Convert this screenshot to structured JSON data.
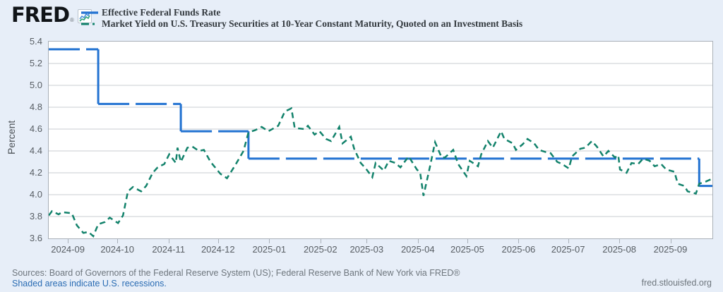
{
  "header": {
    "logo_text": "FRED",
    "registered_mark": "®"
  },
  "legend": [
    {
      "label": "Effective Federal Funds Rate",
      "color": "#2272d1",
      "style": "solid"
    },
    {
      "label": "Market Yield on U.S. Treasury Securities at 10-Year Constant Maturity, Quoted on an Investment Basis",
      "color": "#12826b",
      "style": "dash-dot"
    }
  ],
  "footer": {
    "sources": "Sources: Board of Governors of the Federal Reserve System (US); Federal Reserve Bank of New York via FRED®",
    "recession_note": "Shaded areas indicate U.S. recessions.",
    "site": "fred.stlouisfed.org"
  },
  "chart_data": {
    "type": "line",
    "title": "",
    "xlabel": "",
    "ylabel": "Percent",
    "ylim": [
      3.6,
      5.4
    ],
    "yticks": [
      5.4,
      5.2,
      5.0,
      4.8,
      4.6,
      4.4,
      4.2,
      4.0,
      3.8,
      3.6
    ],
    "grid": "horizontal",
    "legend_position": "top-left",
    "x_range": [
      "2024-08-20",
      "2025-09-26"
    ],
    "xticks": [
      {
        "date": "2024-09-01",
        "label": "2024-09"
      },
      {
        "date": "2024-10-01",
        "label": "2024-10"
      },
      {
        "date": "2024-11-01",
        "label": "2024-11"
      },
      {
        "date": "2024-12-01",
        "label": "2024-12"
      },
      {
        "date": "2025-01-01",
        "label": "2025-01"
      },
      {
        "date": "2025-02-01",
        "label": "2025-02"
      },
      {
        "date": "2025-03-01",
        "label": "2025-03"
      },
      {
        "date": "2025-04-01",
        "label": "2025-04"
      },
      {
        "date": "2025-05-01",
        "label": "2025-05"
      },
      {
        "date": "2025-06-01",
        "label": "2025-06"
      },
      {
        "date": "2025-07-01",
        "label": "2025-07"
      },
      {
        "date": "2025-08-01",
        "label": "2025-08"
      },
      {
        "date": "2025-09-01",
        "label": "2025-09"
      }
    ],
    "series": [
      {
        "name": "Effective Federal Funds Rate",
        "color": "#2272d1",
        "line": "step",
        "width": 3,
        "points": [
          [
            "2024-08-20",
            5.33
          ],
          [
            "2024-09-19",
            4.83
          ],
          [
            "2024-11-08",
            4.58
          ],
          [
            "2024-12-19",
            4.33
          ],
          [
            "2025-09-18",
            4.08
          ],
          [
            "2025-09-26",
            4.08
          ]
        ]
      },
      {
        "name": "Market Yield on U.S. Treasury Securities at 10-Year Constant Maturity, Quoted on an Investment Basis",
        "color": "#12826b",
        "line": "dashed",
        "width": 2.5,
        "points": [
          [
            "2024-08-20",
            3.81
          ],
          [
            "2024-08-22",
            3.85
          ],
          [
            "2024-08-26",
            3.82
          ],
          [
            "2024-08-28",
            3.84
          ],
          [
            "2024-09-03",
            3.83
          ],
          [
            "2024-09-06",
            3.72
          ],
          [
            "2024-09-10",
            3.65
          ],
          [
            "2024-09-13",
            3.66
          ],
          [
            "2024-09-16",
            3.62
          ],
          [
            "2024-09-19",
            3.73
          ],
          [
            "2024-09-23",
            3.75
          ],
          [
            "2024-09-26",
            3.79
          ],
          [
            "2024-10-01",
            3.74
          ],
          [
            "2024-10-04",
            3.81
          ],
          [
            "2024-10-07",
            4.03
          ],
          [
            "2024-10-10",
            4.07
          ],
          [
            "2024-10-15",
            4.03
          ],
          [
            "2024-10-18",
            4.08
          ],
          [
            "2024-10-22",
            4.2
          ],
          [
            "2024-10-25",
            4.25
          ],
          [
            "2024-10-29",
            4.28
          ],
          [
            "2024-11-01",
            4.37
          ],
          [
            "2024-11-05",
            4.29
          ],
          [
            "2024-11-06",
            4.43
          ],
          [
            "2024-11-08",
            4.3
          ],
          [
            "2024-11-12",
            4.43
          ],
          [
            "2024-11-15",
            4.44
          ],
          [
            "2024-11-19",
            4.4
          ],
          [
            "2024-11-22",
            4.41
          ],
          [
            "2024-11-26",
            4.3
          ],
          [
            "2024-12-02",
            4.19
          ],
          [
            "2024-12-06",
            4.15
          ],
          [
            "2024-12-11",
            4.27
          ],
          [
            "2024-12-16",
            4.4
          ],
          [
            "2024-12-19",
            4.57
          ],
          [
            "2024-12-23",
            4.59
          ],
          [
            "2024-12-27",
            4.62
          ],
          [
            "2024-12-31",
            4.58
          ],
          [
            "2025-01-06",
            4.63
          ],
          [
            "2025-01-10",
            4.76
          ],
          [
            "2025-01-14",
            4.79
          ],
          [
            "2025-01-16",
            4.61
          ],
          [
            "2025-01-22",
            4.6
          ],
          [
            "2025-01-24",
            4.63
          ],
          [
            "2025-01-28",
            4.55
          ],
          [
            "2025-01-31",
            4.58
          ],
          [
            "2025-02-04",
            4.51
          ],
          [
            "2025-02-07",
            4.49
          ],
          [
            "2025-02-12",
            4.62
          ],
          [
            "2025-02-14",
            4.47
          ],
          [
            "2025-02-19",
            4.53
          ],
          [
            "2025-02-21",
            4.42
          ],
          [
            "2025-02-25",
            4.29
          ],
          [
            "2025-02-28",
            4.24
          ],
          [
            "2025-03-04",
            4.16
          ],
          [
            "2025-03-06",
            4.29
          ],
          [
            "2025-03-11",
            4.22
          ],
          [
            "2025-03-14",
            4.31
          ],
          [
            "2025-03-18",
            4.29
          ],
          [
            "2025-03-21",
            4.25
          ],
          [
            "2025-03-26",
            4.35
          ],
          [
            "2025-03-31",
            4.23
          ],
          [
            "2025-04-02",
            4.2
          ],
          [
            "2025-04-04",
            3.99
          ],
          [
            "2025-04-08",
            4.26
          ],
          [
            "2025-04-11",
            4.48
          ],
          [
            "2025-04-15",
            4.34
          ],
          [
            "2025-04-17",
            4.34
          ],
          [
            "2025-04-22",
            4.41
          ],
          [
            "2025-04-25",
            4.28
          ],
          [
            "2025-04-30",
            4.17
          ],
          [
            "2025-05-02",
            4.31
          ],
          [
            "2025-05-07",
            4.26
          ],
          [
            "2025-05-09",
            4.37
          ],
          [
            "2025-05-13",
            4.49
          ],
          [
            "2025-05-16",
            4.43
          ],
          [
            "2025-05-21",
            4.58
          ],
          [
            "2025-05-23",
            4.51
          ],
          [
            "2025-05-28",
            4.47
          ],
          [
            "2025-05-30",
            4.41
          ],
          [
            "2025-06-03",
            4.46
          ],
          [
            "2025-06-06",
            4.51
          ],
          [
            "2025-06-10",
            4.47
          ],
          [
            "2025-06-13",
            4.41
          ],
          [
            "2025-06-17",
            4.39
          ],
          [
            "2025-06-20",
            4.38
          ],
          [
            "2025-06-24",
            4.3
          ],
          [
            "2025-06-27",
            4.28
          ],
          [
            "2025-07-01",
            4.24
          ],
          [
            "2025-07-03",
            4.35
          ],
          [
            "2025-07-08",
            4.42
          ],
          [
            "2025-07-11",
            4.43
          ],
          [
            "2025-07-15",
            4.49
          ],
          [
            "2025-07-18",
            4.44
          ],
          [
            "2025-07-22",
            4.35
          ],
          [
            "2025-07-25",
            4.4
          ],
          [
            "2025-07-29",
            4.34
          ],
          [
            "2025-07-31",
            4.36
          ],
          [
            "2025-08-01",
            4.23
          ],
          [
            "2025-08-05",
            4.2
          ],
          [
            "2025-08-08",
            4.29
          ],
          [
            "2025-08-12",
            4.28
          ],
          [
            "2025-08-15",
            4.33
          ],
          [
            "2025-08-19",
            4.31
          ],
          [
            "2025-08-22",
            4.26
          ],
          [
            "2025-08-26",
            4.28
          ],
          [
            "2025-08-29",
            4.23
          ],
          [
            "2025-09-03",
            4.21
          ],
          [
            "2025-09-05",
            4.1
          ],
          [
            "2025-09-09",
            4.08
          ],
          [
            "2025-09-11",
            4.03
          ],
          [
            "2025-09-16",
            4.01
          ],
          [
            "2025-09-18",
            4.1
          ],
          [
            "2025-09-22",
            4.12
          ],
          [
            "2025-09-25",
            4.14
          ]
        ]
      }
    ]
  }
}
